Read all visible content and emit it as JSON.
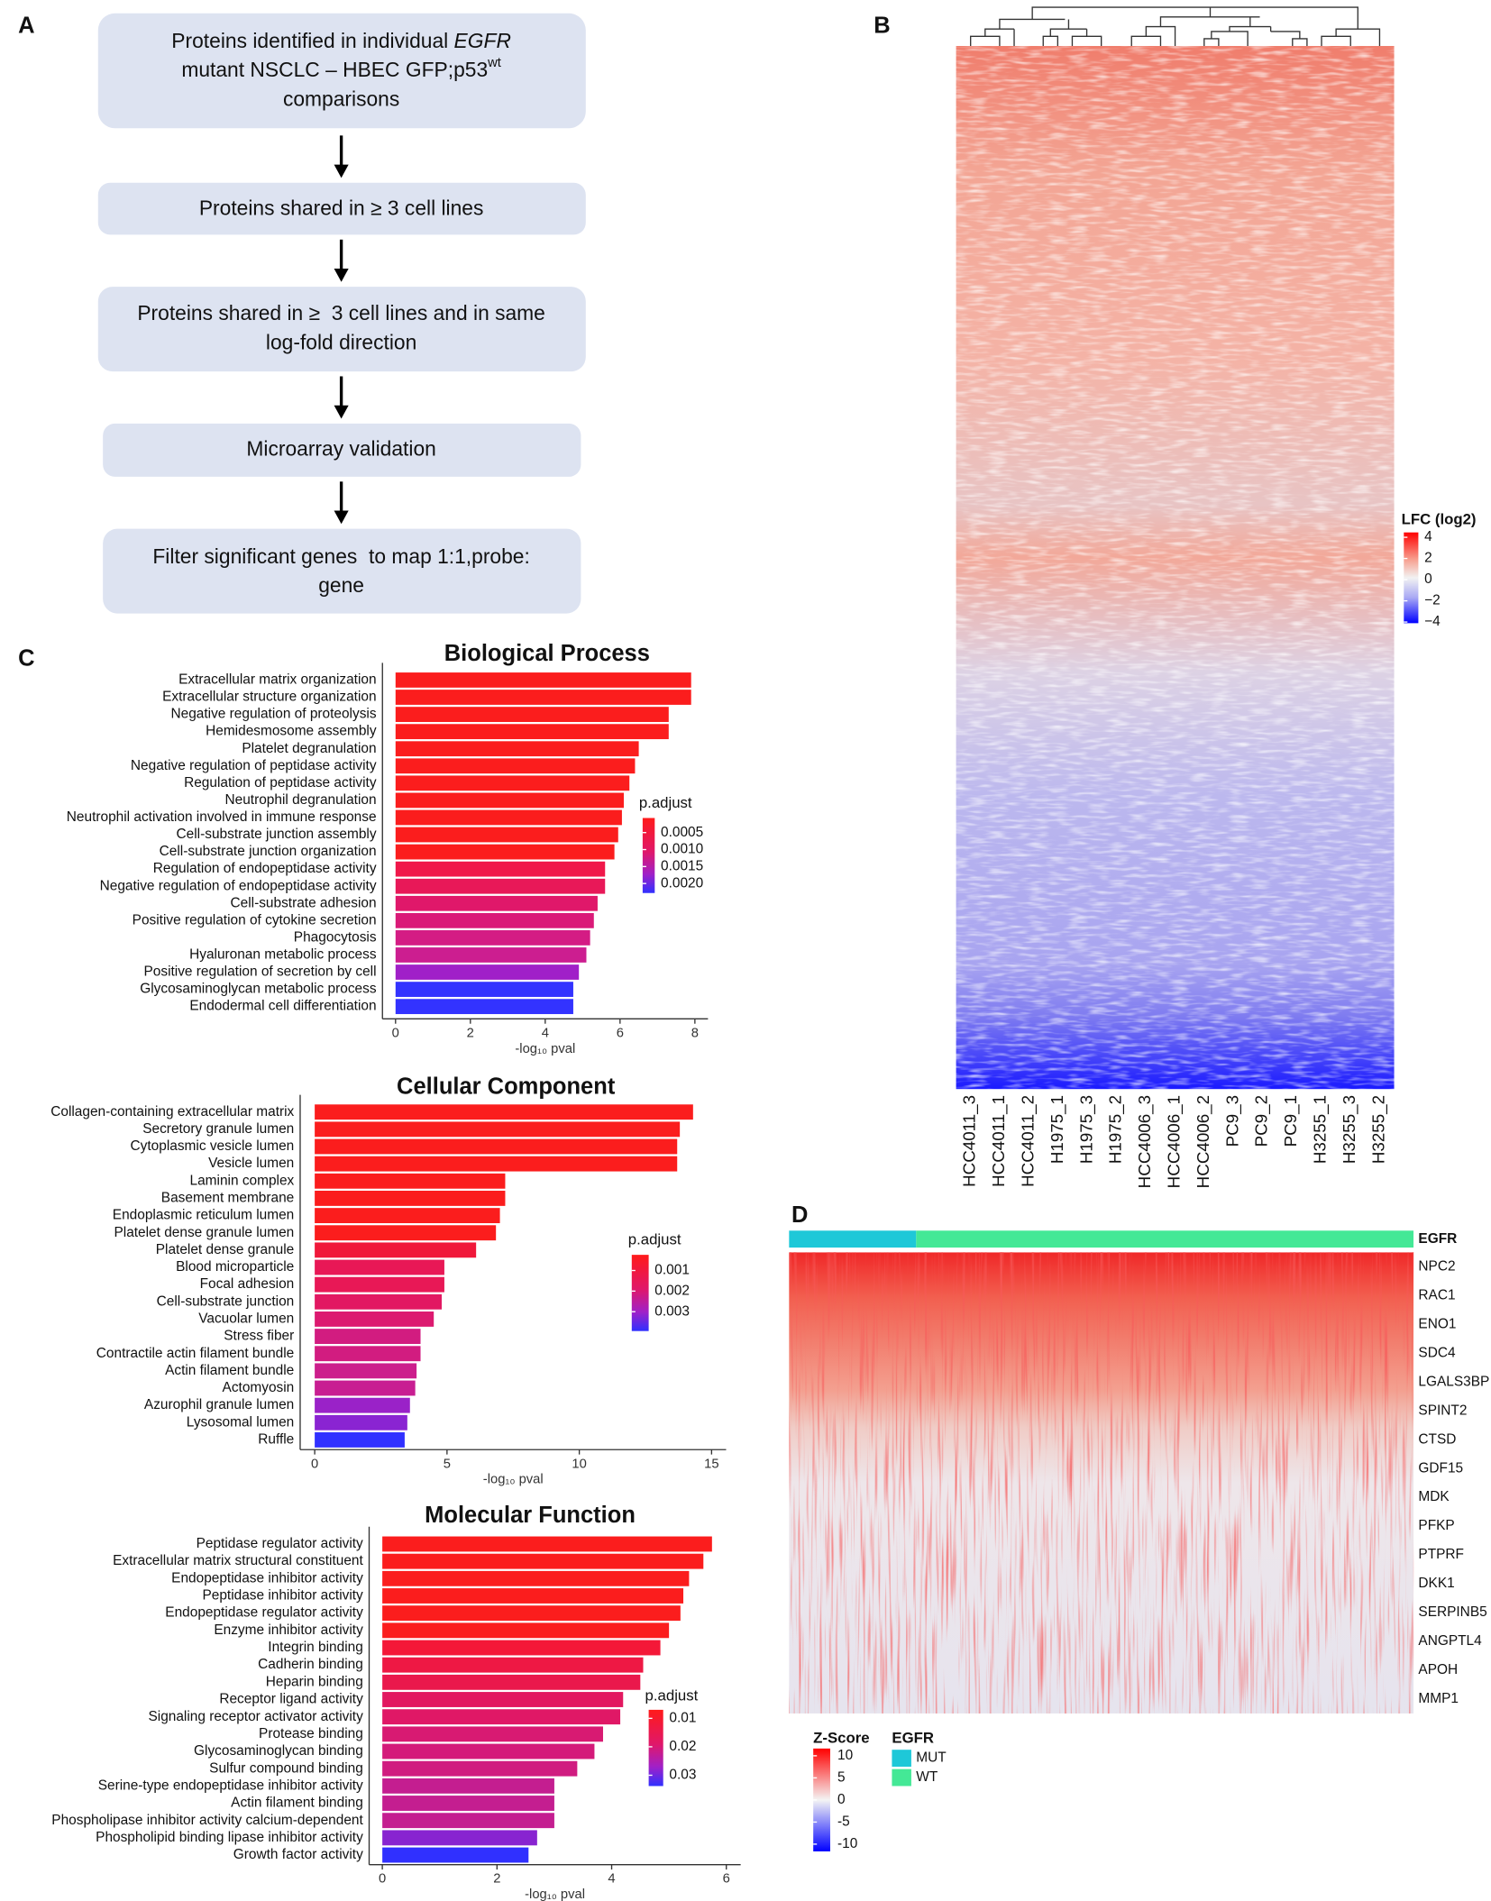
{
  "panels": [
    "A",
    "B",
    "C",
    "D"
  ],
  "flowchart": {
    "boxes": [
      {
        "lines": [
          [
            "Proteins identified in individual ",
            "EGFR"
          ],
          [
            "mutant NSCLC – HBEC GFP;p53",
            "wt"
          ],
          [
            "comparisons"
          ]
        ]
      },
      {
        "lines": [
          [
            "Proteins shared in ≥ 3 cell lines"
          ]
        ]
      },
      {
        "lines": [
          [
            "Proteins shared in ≥  3 cell lines and in same"
          ],
          [
            "log-fold direction"
          ]
        ]
      },
      {
        "lines": [
          [
            "Microarray validation"
          ]
        ]
      },
      {
        "lines": [
          [
            "Filter significant genes  to map 1:1,probe:"
          ],
          [
            "gene"
          ]
        ]
      }
    ]
  },
  "heatmap_b": {
    "columns": [
      {
        "name": "HCC4011_3",
        "color": "#111111"
      },
      {
        "name": "HCC4011_1",
        "color": "#111111"
      },
      {
        "name": "HCC4011_2",
        "color": "#111111"
      },
      {
        "name": "H1975_1",
        "color": "#e8392f"
      },
      {
        "name": "H1975_3",
        "color": "#e8392f"
      },
      {
        "name": "H1975_2",
        "color": "#e8392f"
      },
      {
        "name": "HCC4006_3",
        "color": "#2a6fbb"
      },
      {
        "name": "HCC4006_1",
        "color": "#2a6fbb"
      },
      {
        "name": "HCC4006_2",
        "color": "#2a6fbb"
      },
      {
        "name": "PC9_3",
        "color": "#8a6d14"
      },
      {
        "name": "PC9_2",
        "color": "#8a6d14"
      },
      {
        "name": "PC9_1",
        "color": "#8a6d14"
      },
      {
        "name": "H3255_1",
        "color": "#5a8a2a"
      },
      {
        "name": "H3255_3",
        "color": "#5a8a2a"
      },
      {
        "name": "H3255_2",
        "color": "#5a8a2a"
      }
    ],
    "legend_title": "LFC (log2)",
    "legend_ticks": [
      4,
      2,
      0,
      {
        "value": -2,
        "label": "−2"
      },
      {
        "value": -4,
        "label": "−4"
      }
    ],
    "legend_lim": [
      -4.11,
      4.46
    ]
  },
  "chart_data": [
    {
      "type": "bar",
      "orientation": "horizontal",
      "title": "Biological Process",
      "categories": [
        "Extracellular matrix organization",
        "Extracellular structure organization",
        "Negative regulation of proteolysis",
        "Hemidesmosome assembly",
        "Platelet degranulation",
        "Negative regulation of peptidase activity",
        "Regulation of peptidase activity",
        "Neutrophil degranulation",
        "Neutrophil activation involved in immune response",
        "Cell-substrate junction assembly",
        "Cell-substrate junction organization",
        "Regulation of endopeptidase activity",
        "Negative regulation of endopeptidase activity",
        "Cell-substrate adhesion",
        "Positive regulation of cytokine secretion",
        "Phagocytosis",
        "Hyaluronan metabolic process",
        "Positive regulation of secretion by cell",
        "Glycosaminoglycan metabolic process",
        "Endodermal cell differentiation"
      ],
      "values": [
        7.9,
        7.9,
        7.3,
        7.3,
        6.5,
        6.4,
        6.25,
        6.1,
        6.05,
        5.95,
        5.85,
        5.6,
        5.6,
        5.4,
        5.3,
        5.2,
        5.1,
        4.9,
        4.75,
        4.75
      ],
      "colors": [
        "#fb1d1d",
        "#fb1d1d",
        "#fb1d1d",
        "#fb1d1d",
        "#fb1d1d",
        "#fb1d1d",
        "#fb1d1d",
        "#fb1d1d",
        "#fb1d1d",
        "#fb1d1d",
        "#fb1d1d",
        "#f0174a",
        "#e81858",
        "#e0186a",
        "#da1a78",
        "#d41c84",
        "#cc1e90",
        "#a020c8",
        "#3333ff",
        "#3333ff"
      ],
      "xlim": [
        -0.35,
        8.35
      ],
      "xticks": [
        0,
        2,
        4,
        6,
        8
      ],
      "xlabel": "-log₁₀ pval",
      "legend": {
        "title": "p.adjust",
        "ticks": [
          0.0005,
          {
            "value": 0.001,
            "label": "0.0010"
          },
          0.0015,
          {
            "value": 0.002,
            "label": "0.0020"
          }
        ],
        "lim": [
          7e-05,
          0.00228
        ]
      }
    },
    {
      "type": "bar",
      "orientation": "horizontal",
      "title": "Cellular Component",
      "categories": [
        "Collagen-containing extracellular matrix",
        "Secretory granule lumen",
        "Cytoplasmic vesicle lumen",
        "Vesicle lumen",
        "Laminin complex",
        "Basement membrane",
        "Endoplasmic reticulum lumen",
        "Platelet dense granule lumen",
        "Platelet dense granule",
        "Blood microparticle",
        "Focal adhesion",
        "Cell-substrate junction",
        "Vacuolar lumen",
        "Stress fiber",
        "Contractile actin filament bundle",
        "Actin filament bundle",
        "Actomyosin",
        "Azurophil granule lumen",
        "Lysosomal lumen",
        "Ruffle"
      ],
      "values": [
        14.3,
        13.8,
        13.7,
        13.7,
        7.2,
        7.2,
        7.0,
        6.85,
        6.1,
        4.9,
        4.9,
        4.8,
        4.5,
        4.0,
        4.0,
        3.85,
        3.8,
        3.6,
        3.5,
        3.4
      ],
      "colors": [
        "#fb1d1d",
        "#fb1d1d",
        "#fb1d1d",
        "#fb1d1d",
        "#fb1d1d",
        "#fb1d1d",
        "#fb1d1d",
        "#fb1d1d",
        "#f0183a",
        "#e81856",
        "#e81856",
        "#e21862",
        "#dc1a70",
        "#d21c80",
        "#d21c80",
        "#cc1e8c",
        "#c81e92",
        "#9a22c8",
        "#8a24d2",
        "#3030ff"
      ],
      "xlim": [
        -0.55,
        15.55
      ],
      "xticks": [
        0,
        5,
        10,
        15
      ],
      "xlabel": "-log₁₀ pval",
      "legend": {
        "title": "p.adjust",
        "ticks": [
          0.001,
          0.002,
          0.003
        ],
        "lim": [
          0.00024,
          0.00394
        ]
      }
    },
    {
      "type": "bar",
      "orientation": "horizontal",
      "title": "Molecular Function",
      "categories": [
        "Peptidase regulator activity",
        "Extracellular matrix structural constituent",
        "Endopeptidase inhibitor activity",
        "Peptidase inhibitor activity",
        "Endopeptidase regulator activity",
        "Enzyme inhibitor activity",
        "Integrin binding",
        "Cadherin binding",
        "Heparin binding",
        "Receptor ligand activity",
        "Signaling receptor activator activity",
        "Protease binding",
        "Glycosaminoglycan binding",
        "Sulfur compound binding",
        "Serine-type endopeptidase inhibitor activity",
        "Actin filament binding",
        "Phospholipase inhibitor activity calcium-dependent",
        "Phospholipid binding lipase inhibitor activity",
        "Growth factor activity"
      ],
      "values": [
        5.75,
        5.6,
        5.35,
        5.25,
        5.2,
        5.0,
        4.85,
        4.55,
        4.5,
        4.2,
        4.15,
        3.85,
        3.7,
        3.4,
        3.0,
        3.0,
        3.0,
        2.7,
        2.55
      ],
      "colors": [
        "#fb1d1d",
        "#fb1d1d",
        "#fb1d1d",
        "#fb1d1d",
        "#fb1d1d",
        "#fb1d1d",
        "#f41838",
        "#ee1844",
        "#ea184c",
        "#e21860",
        "#e01866",
        "#d81a72",
        "#d41a7a",
        "#d01c80",
        "#c41e90",
        "#c41e90",
        "#c41e90",
        "#8824d0",
        "#3030ff"
      ],
      "xlim": [
        -0.23,
        6.25
      ],
      "xticks": [
        0,
        2,
        4,
        6
      ],
      "xlabel": "-log₁₀ pval",
      "legend": {
        "title": "p.adjust",
        "ticks": [
          0.01,
          0.02,
          0.03
        ],
        "lim": [
          0.007,
          0.0338
        ]
      }
    }
  ],
  "heatmap_d": {
    "annotation_label": "EGFR",
    "genes": [
      "NPC2",
      "RAC1",
      "ENO1",
      "SDC4",
      "LGALS3BP",
      "SPINT2",
      "CTSD",
      "GDF15",
      "MDK",
      "PFKP",
      "PTPRF",
      "DKK1",
      "SERPINB5",
      "ANGPTL4",
      "APOH",
      "MMP1"
    ],
    "groups": [
      {
        "name": "MUT",
        "color": "#1ec8d8"
      },
      {
        "name": "WT",
        "color": "#44e896"
      }
    ],
    "legend_title": "Z-Score",
    "legend_ticks": [
      10,
      5,
      0,
      -5,
      -10
    ],
    "legend_lim": [
      -11.64,
      11.64
    ],
    "annotation_legend_title": "EGFR"
  }
}
